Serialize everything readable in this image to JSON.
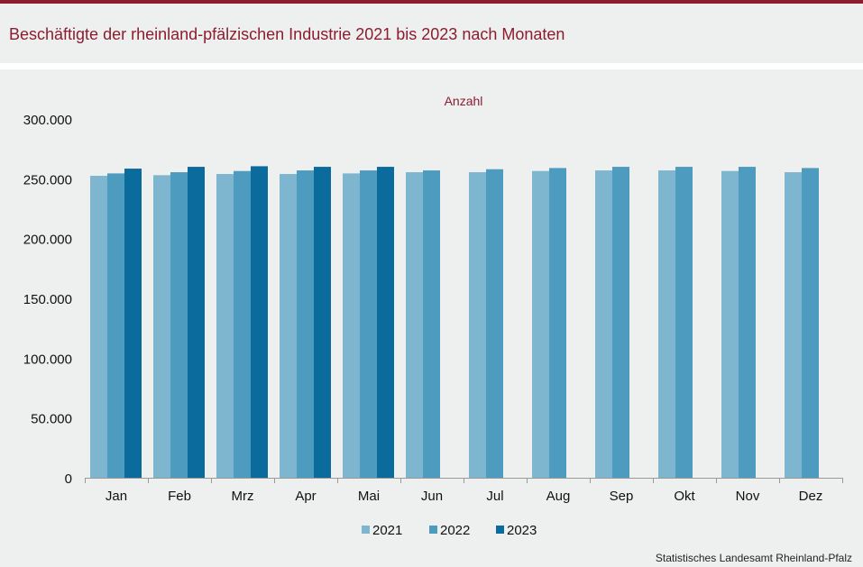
{
  "header": {
    "title": "Beschäftigte der rheinland-pfälzischen Industrie 2021 bis 2023 nach Monaten"
  },
  "footer": {
    "source": "Statistisches Landesamt  Rheinland-Pfalz"
  },
  "colors": {
    "accent": "#8c1c2f",
    "series_2021": "#7fb6cf",
    "series_2022": "#4e9bc0",
    "series_2023": "#0b6b9c",
    "background": "#eef0ef"
  },
  "chart_data": {
    "type": "bar",
    "title": "",
    "ylabel": "Anzahl",
    "xlabel": "",
    "ylim": [
      0,
      300000
    ],
    "yticks": [
      0,
      50000,
      100000,
      150000,
      200000,
      250000,
      300000
    ],
    "ytick_labels": [
      "0",
      "50.000",
      "100.000",
      "150.000",
      "200.000",
      "250.000",
      "300.000"
    ],
    "grid": false,
    "legend_position": "bottom",
    "categories": [
      "Jan",
      "Feb",
      "Mrz",
      "Apr",
      "Mai",
      "Jun",
      "Jul",
      "Aug",
      "Sep",
      "Okt",
      "Nov",
      "Dez"
    ],
    "series": [
      {
        "name": "2021",
        "values": [
          252500,
          253000,
          254000,
          254000,
          254500,
          255500,
          255500,
          256500,
          257000,
          257000,
          256500,
          255500
        ]
      },
      {
        "name": "2022",
        "values": [
          254500,
          255500,
          256500,
          257000,
          257000,
          257000,
          258000,
          259000,
          260000,
          260000,
          260000,
          259000
        ]
      },
      {
        "name": "2023",
        "values": [
          258500,
          260000,
          260500,
          260000,
          260000,
          null,
          null,
          null,
          null,
          null,
          null,
          null
        ]
      }
    ]
  }
}
